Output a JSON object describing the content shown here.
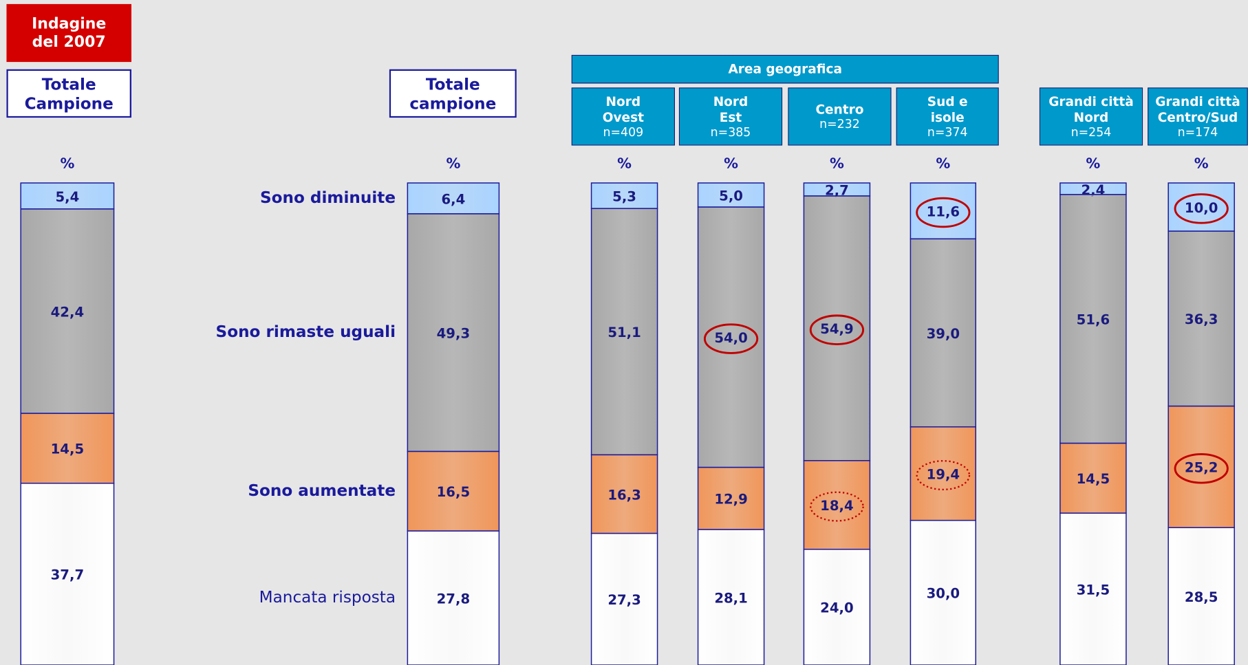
{
  "chart_data": {
    "type": "stacked_bar",
    "badge": "Indagine\ndel 2007",
    "group_title": "Area geografica",
    "unit": "%",
    "categories": [
      "Totale\nCampione",
      "Totale\ncampione",
      "Nord\nOvest",
      "Nord\nEst",
      "Centro",
      "Sud e\nisole",
      "Grandi città\nNord",
      "Grandi città\nCentro/Sud"
    ],
    "n": [
      null,
      null,
      "n=409",
      "n=385",
      "n=232",
      "n=374",
      "n=254",
      "n=174"
    ],
    "ylim": [
      0,
      100
    ],
    "series": [
      {
        "name": "Sono diminuite",
        "color": "#a9d3ff",
        "values": [
          5.4,
          6.4,
          5.3,
          5.0,
          2.7,
          11.6,
          2.4,
          10.0
        ],
        "value_labels": [
          "5,4",
          "6,4",
          "5,3",
          "5,0",
          "2,7",
          "11,6",
          "2,4",
          "10,0"
        ],
        "circled": [
          null,
          null,
          null,
          null,
          null,
          "solid",
          null,
          "solid"
        ]
      },
      {
        "name": "Sono rimaste uguali",
        "color": "#a8a8a8",
        "values": [
          42.4,
          49.3,
          51.1,
          54.0,
          54.9,
          39.0,
          51.6,
          36.3
        ],
        "value_labels": [
          "42,4",
          "49,3",
          "51,1",
          "54,0",
          "54,9",
          "39,0",
          "51,6",
          "36,3"
        ],
        "circled": [
          null,
          null,
          null,
          "solid",
          "solid",
          null,
          null,
          null
        ]
      },
      {
        "name": "Sono aumentate",
        "color": "#f0965a",
        "values": [
          14.5,
          16.5,
          16.3,
          12.9,
          18.4,
          19.4,
          14.5,
          25.2
        ],
        "value_labels": [
          "14,5",
          "16,5",
          "16,3",
          "12,9",
          "18,4",
          "19,4",
          "14,5",
          "25,2"
        ],
        "circled": [
          null,
          null,
          null,
          null,
          "dotted",
          "dotted",
          null,
          "solid"
        ]
      },
      {
        "name": "Mancata risposta",
        "color": "#ffffff",
        "values": [
          37.7,
          27.8,
          27.3,
          28.1,
          24.0,
          30.0,
          31.5,
          28.5
        ],
        "value_labels": [
          "37,7",
          "27,8",
          "27,3",
          "28,1",
          "24,0",
          "30,0",
          "31,5",
          "28,5"
        ],
        "circled": [
          null,
          null,
          null,
          null,
          null,
          null,
          null,
          null
        ]
      }
    ]
  }
}
